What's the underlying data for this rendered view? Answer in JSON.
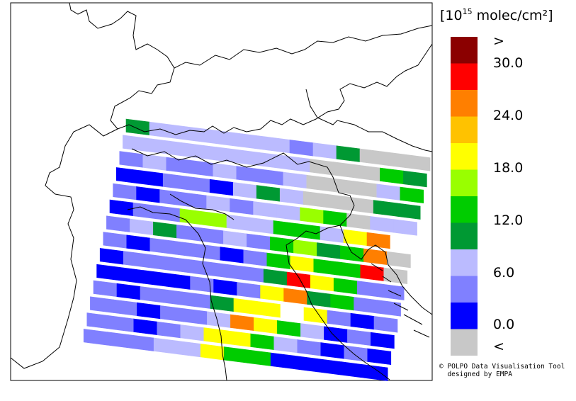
{
  "legend": {
    "unit_prefix": "[10",
    "unit_exponent": "15",
    "unit_suffix": " molec/cm²]",
    "labels": [
      ">",
      "30.0",
      "24.0",
      "18.0",
      "12.0",
      "6.0",
      "0.0",
      "<"
    ],
    "colors": [
      "#8b0000",
      "#ff0000",
      "#ff7f00",
      "#ffc200",
      "#ffff00",
      "#99ff00",
      "#00cc00",
      "#009933",
      "#bbbbff",
      "#8080ff",
      "#0000ff",
      "#c8c8c8"
    ]
  },
  "credit": {
    "line1": "© POLPO Data Visualisation Tool",
    "line2": "designed by EMPA"
  },
  "swaths": [
    [
      "dg",
      "lp",
      "lp",
      "lp",
      "lp",
      "lp",
      "lp",
      "mb",
      "lp",
      "dg",
      "gr",
      "gr",
      "gr"
    ],
    [
      "lp",
      "lp",
      "lp",
      "lp",
      "lp",
      "lp",
      "lp",
      "lp",
      "gr",
      "gr",
      "gr",
      "bg",
      "dg"
    ],
    [
      "mb",
      "lp",
      "mb",
      "mb",
      "lp",
      "mb",
      "mb",
      "lp",
      "gr",
      "gr",
      "gr",
      "lp",
      "bg"
    ],
    [
      "db",
      "db",
      "mb",
      "mb",
      "db",
      "lp",
      "dg",
      "lp",
      "gr",
      "gr",
      "gr",
      "dg",
      "dg"
    ],
    [
      "mb",
      "db",
      "mb",
      "mb",
      "lp",
      "mb",
      "lp",
      "lp",
      "yg",
      "bg",
      "gr",
      "lp",
      "lp"
    ],
    [
      "db",
      "mb",
      "mb",
      "yg",
      "yg",
      "lp",
      "lp",
      "bg",
      "bg",
      "lp",
      "yl",
      "or",
      "lg"
    ],
    [
      "mb",
      "lp",
      "dg",
      "mb",
      "mb",
      "lp",
      "mb",
      "bg",
      "yg",
      "dg",
      "bg",
      "or",
      "gr"
    ],
    [
      "mb",
      "db",
      "mb",
      "mb",
      "mb",
      "db",
      "mb",
      "bg",
      "yl",
      "bg",
      "bg",
      "rd",
      "gr"
    ],
    [
      "db",
      "mb",
      "mb",
      "mb",
      "mb",
      "mb",
      "mb",
      "dg",
      "rd",
      "yl",
      "bg",
      "mb",
      "mb"
    ],
    [
      "db",
      "db",
      "db",
      "db",
      "mb",
      "db",
      "mb",
      "yl",
      "or",
      "dg",
      "bg",
      "mb",
      "mb"
    ],
    [
      "mb",
      "db",
      "mb",
      "mb",
      "mb",
      "dg",
      "yl",
      "yl",
      "lg",
      "yl",
      "mb",
      "db",
      "mb"
    ],
    [
      "mb",
      "mb",
      "db",
      "mb",
      "mb",
      "lp",
      "or",
      "yl",
      "bg",
      "lp",
      "db",
      "mb",
      "db"
    ],
    [
      "mb",
      "mb",
      "db",
      "mb",
      "lp",
      "yl",
      "yl",
      "bg",
      "lp",
      "mb",
      "db",
      "mb",
      "db"
    ],
    [
      "mb",
      "mb",
      "mb",
      "lp",
      "lp",
      "yl",
      "bg",
      "bg",
      "db",
      "db",
      "db",
      "db",
      "db"
    ]
  ]
}
